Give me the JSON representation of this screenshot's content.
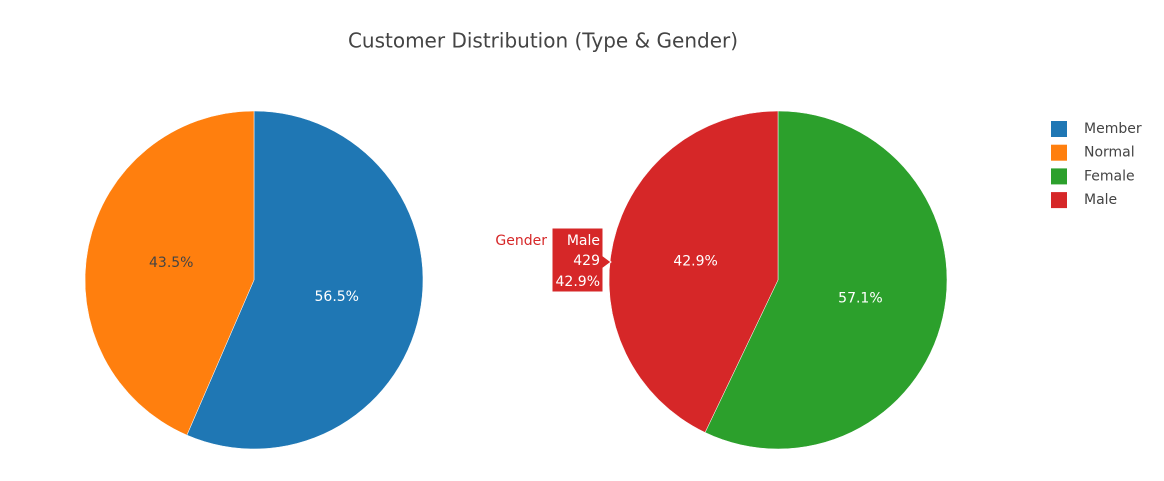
{
  "title": "Customer Distribution (Type & Gender)",
  "chart_data": [
    {
      "type": "pie",
      "categories": [
        "Member",
        "Normal"
      ],
      "values": [
        56.5,
        43.5
      ],
      "value_labels": [
        "56.5%",
        "43.5%"
      ],
      "colors": [
        "#1f77b4",
        "#ff7f0e"
      ]
    },
    {
      "type": "pie",
      "categories": [
        "Female",
        "Male"
      ],
      "values": [
        57.1,
        42.9
      ],
      "value_labels": [
        "57.1%",
        "42.9%"
      ],
      "colors": [
        "#2ca02c",
        "#d62728"
      ],
      "hover": {
        "trace": "Gender",
        "label": "Male",
        "value": 429
      }
    }
  ]
}
